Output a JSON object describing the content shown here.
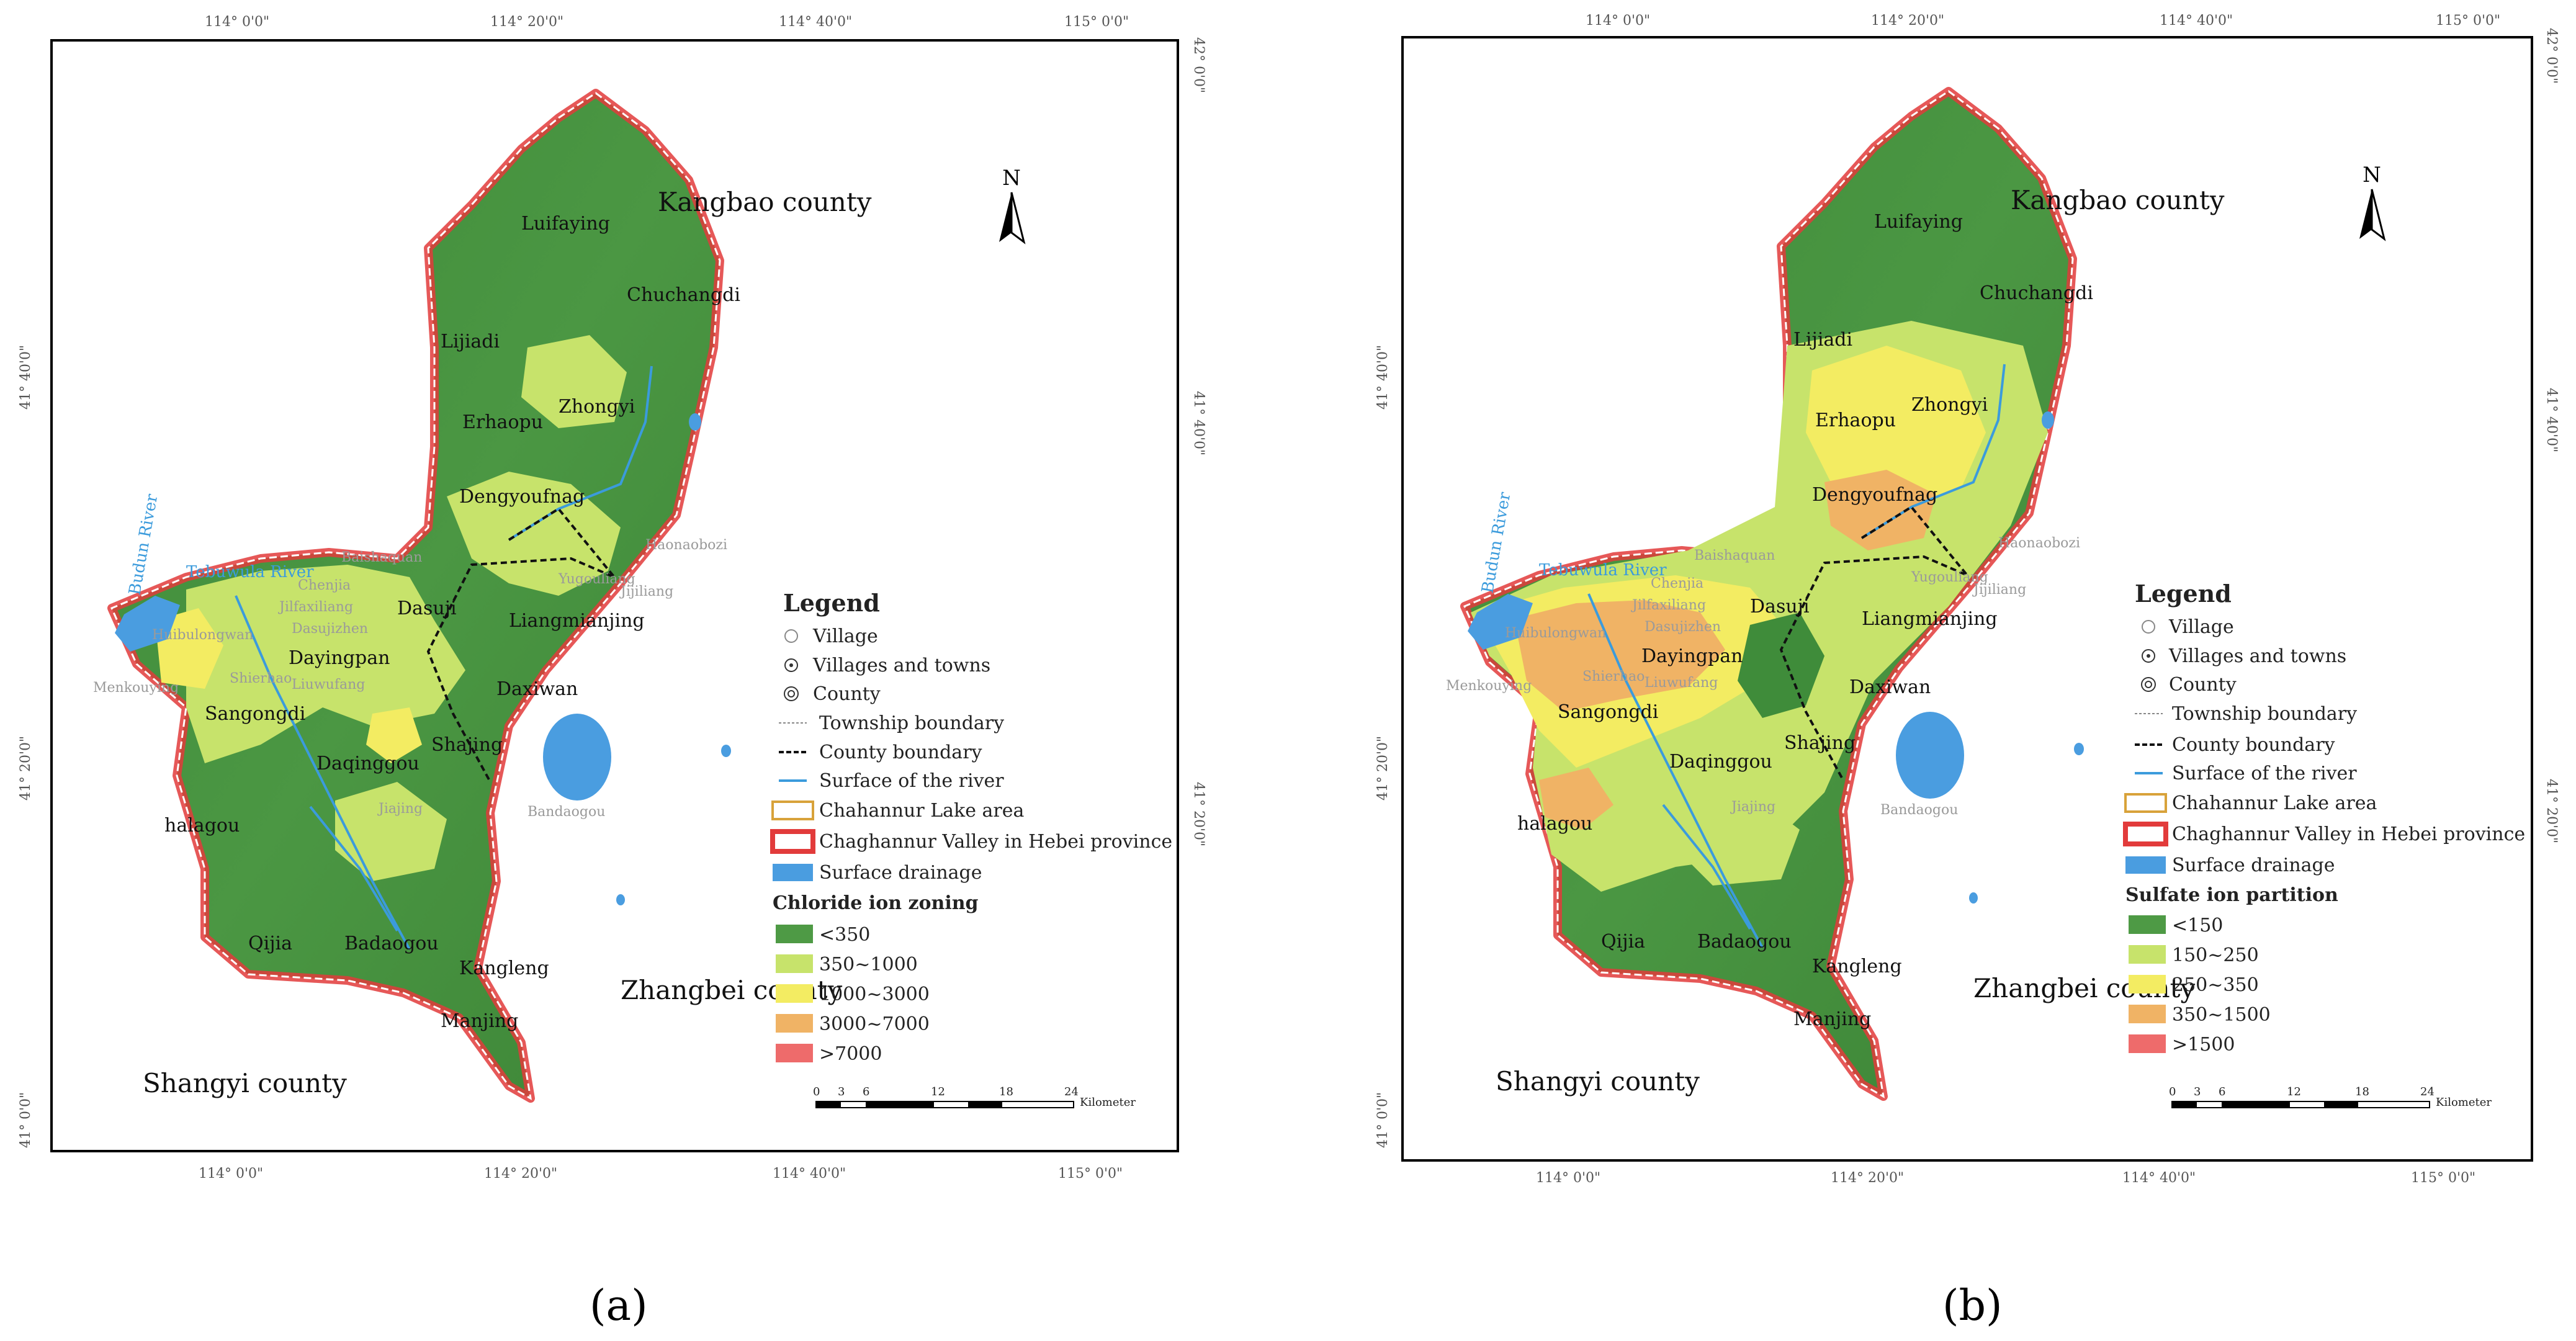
{
  "panels": [
    {
      "label": "(a)",
      "legend": {
        "title": "Legend",
        "items": [
          "Village",
          "Villages and towns",
          "County",
          "Township boundary",
          "County boundary",
          "Surface of the river",
          "Chahannur Lake area",
          "Chaghannur Valley in Hebei province",
          "Surface drainage"
        ],
        "zoning_title": "Chloride ion zoning",
        "zoning_classes": [
          "<350",
          "350~1000",
          "1000~3000",
          "3000~7000",
          ">7000"
        ]
      }
    },
    {
      "label": "(b)",
      "legend": {
        "title": "Legend",
        "items": [
          "Village",
          "Villages and towns",
          "County",
          "Township boundary",
          "County boundary",
          "Surface of the river",
          "Chahannur Lake area",
          "Chaghannur Valley in Hebei province",
          "Surface drainage"
        ],
        "zoning_title": "Sulfate ion partition",
        "zoning_classes": [
          "<150",
          "150~250",
          "250~350",
          "350~1500",
          ">1500"
        ]
      }
    }
  ],
  "zoning_colors": [
    "#4e9a45",
    "#c7e36b",
    "#f3ec62",
    "#f0b365",
    "#ee6b6b"
  ],
  "north_label": "N",
  "scale": {
    "ticks": [
      "0",
      "3",
      "6",
      "12",
      "18",
      "24"
    ],
    "unit": "Kilometer"
  },
  "graticule": {
    "lon": [
      "114° 0'0\"",
      "114° 20'0\"",
      "114° 40'0\"",
      "115° 0'0\""
    ],
    "lat": [
      "42° 0'0\"",
      "41° 40'0\"",
      "41° 20'0\"",
      "41° 0'0\""
    ]
  },
  "counties": [
    "Kangbao county",
    "Zhangbei county",
    "Shangyi county"
  ],
  "towns": [
    "Luifaying",
    "Chuchangdi",
    "Lijiadi",
    "Zhongyi",
    "Erhaopu",
    "Dengyoufnag",
    "Dasuji",
    "Liangmianjing",
    "Dayingpan",
    "Daxiwan",
    "Sangongdi",
    "Shajing",
    "Daqinggou",
    "halagou",
    "Qijia",
    "Badaogou",
    "Kangleng",
    "Manjing"
  ],
  "villages": [
    "Baishaquan",
    "Chenjia",
    "Jilfaxiliang",
    "Dasujizhen",
    "Yugouliang",
    "Jijiliang",
    "Haonaobozi",
    "Huibulongwan",
    "Shierhao",
    "Liuwufang",
    "Menkouying",
    "Bandaogou",
    "Jiajing"
  ],
  "rivers": [
    "Tebuwula River",
    "Budun River"
  ]
}
